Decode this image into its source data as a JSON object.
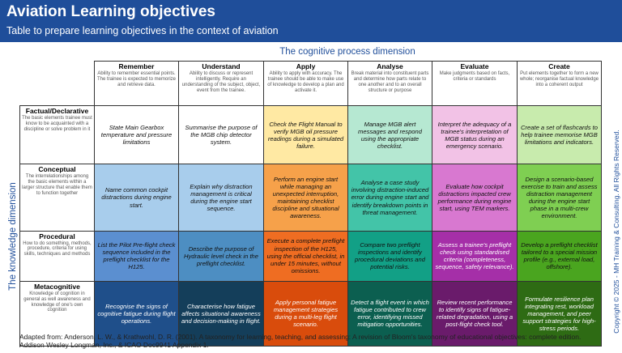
{
  "header": {
    "title": "Aviation Learning objectives",
    "subtitle": "Table to prepare learning objectives in the context of aviation"
  },
  "dimensions": {
    "cognitive": "The cognitive process dimension",
    "knowledge": "The knowledge dimension"
  },
  "copyright": "Copyright © 2025 - MH Training & Consulting. All Rights Reserved.",
  "columns": [
    {
      "title": "Remember",
      "desc": "Ability to remember essential points. The trainee is expected to memorize and retrieve data."
    },
    {
      "title": "Understand",
      "desc": "Ability to discuss or represent intelligently. Require an understanding of the subject, object, event from the trainee."
    },
    {
      "title": "Apply",
      "desc": "Ability to apply with accuracy. The trainee should be able to make use of knowledge to develop a plan and activate it."
    },
    {
      "title": "Analyse",
      "desc": "Break material into constituent parts and determine how parts relate to one another and to an overall structure or purpose"
    },
    {
      "title": "Evaluate",
      "desc": "Make judgments based on facts, criteria or standards"
    },
    {
      "title": "Create",
      "desc": "Put elements together to form a new whole; reorganise factual knowledge into a coherent output"
    }
  ],
  "rows": [
    {
      "title": "Factual/Declarative",
      "desc": "The basic elements trainee must know to be acquainted with a discipline or solve problem in it"
    },
    {
      "title": "Conceptual",
      "desc": "The interrelationships among the basic elements within a larger structure that enable them to function together"
    },
    {
      "title": "Procedural",
      "desc": "How to do something, methods, procedure, criteria for using skills, techniques and methods"
    },
    {
      "title": "Metacognitive",
      "desc": "Knowledge of cognition in general as well awareness and knowledge of one's own cognition"
    }
  ],
  "cells": [
    [
      "State Main Gearbox temperature and pressure limitations",
      "Summarise the purpose of the MGB chip detector system.",
      "Check the Flight Manual to verify MGB oil pressure readings during a simulated failure.",
      "Manage MGB alert messages and respond using the appropriate checklist.",
      "Interpret the adequacy of a trainee's interpretation of MGB status during an emergency scenario.",
      "Create a set of flashcards to help trainee memorise MGB limitations and indicators."
    ],
    [
      "Name common cockpit distractions during engine start.",
      "Explain why distraction management is critical during the engine start sequence.",
      "Perform an engine start while managing an unexpected interruption, maintaining checklist discipline and situational awareness.",
      "Analyse a case study involving distraction-induced error during engine start and identify breakdown points in threat management.",
      "Evaluate how cockpit distractions impacted crew performance during engine start, using TEM markers.",
      "Design a scenario-based exercise to train and assess distraction management during the engine start phase in a multi-crew environment."
    ],
    [
      "List the Pilot Pre-flight check sequence included in the preflight checklist for the H125.",
      "Describe the purpose of Hydraulic level check in the preflight checklist.",
      "Execute a complete preflight inspection of the H125, using the official checklist, in under 15 minutes, without omissions.",
      "Compare two preflight inspections and identify procedural deviations and potential risks.",
      "Assess a trainee's preflight check using standardised criteria (completeness, sequence, safety relevance).",
      "Develop a preflight checklist tailored to a special mission profile (e.g., external load, offshore)."
    ],
    [
      "Recognise the signs of cognitive fatigue during flight operations.",
      "Characterise how fatigue affects situational awareness and decision-making in flight.",
      "Apply personal fatigue management strategies during a multi-leg flight scenario.",
      "Detect a flight event in which fatigue contributed to crew error, identifying missed mitigation opportunities.",
      "Review recent performance to identify signs of fatigue-related degradation, using a post-flight check tool.",
      "Formulate resilience plan integrating rest, workload management, and peer support strategies for high-stress periods."
    ]
  ],
  "colors": {
    "header_bg": "#1f4e9a",
    "cells": [
      [
        "#ffffff",
        "#ffffff",
        "#ffe9a3",
        "#b6e8d2",
        "#f2c2e6",
        "#c8ebad"
      ],
      [
        "#a8cdec",
        "#a8cdec",
        "#f6a14a",
        "#43c4a8",
        "#d878d0",
        "#7fcf52"
      ],
      [
        "#5b8fd0",
        "#4d8ec2",
        "#ef6d22",
        "#12a086",
        "#a52fa8",
        "#4aa51f"
      ],
      [
        "#1f4f8a",
        "#143e5a",
        "#d94c0c",
        "#0c5f50",
        "#6a1b6b",
        "#2e6b14"
      ]
    ],
    "text_mode": [
      [
        "light",
        "light",
        "light",
        "light",
        "light",
        "light"
      ],
      [
        "light",
        "light",
        "light",
        "light",
        "light",
        "light"
      ],
      [
        "light",
        "light",
        "light",
        "light",
        "dark",
        "light"
      ],
      [
        "dark",
        "dark",
        "dark",
        "dark",
        "dark",
        "dark"
      ]
    ]
  },
  "footer": "Adapted from: Anderson, L. W., & Krathwohl, D. R. (2001). A taxonomy for learning, teaching, and assessing: A revision of Bloom's taxonomy of educational objectives: complete edition. Addison Wesley Longman, Inc., & ICAO Doc9941 Appendix 1."
}
